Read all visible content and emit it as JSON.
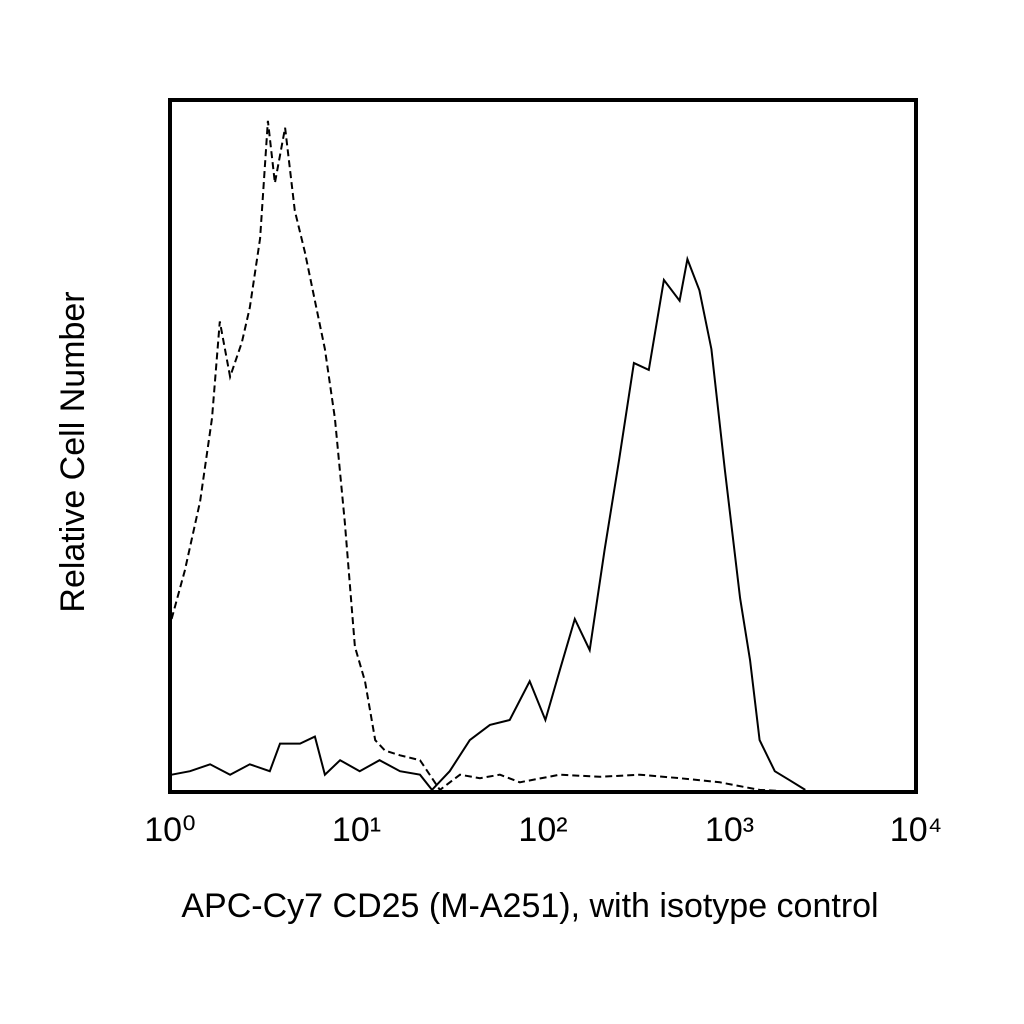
{
  "chart_data": {
    "type": "line",
    "xlabel": "APC-Cy7 CD25 (M-A251), with isotype control",
    "ylabel": "Relative Cell Number",
    "xscale": "log",
    "xlim": [
      1,
      10000
    ],
    "ylim": [
      0,
      100
    ],
    "xticks": [
      {
        "value": 1,
        "label": "10⁰"
      },
      {
        "value": 10,
        "label": "10¹"
      },
      {
        "value": 100,
        "label": "10²"
      },
      {
        "value": 1000,
        "label": "10³"
      },
      {
        "value": 10000,
        "label": "10⁴"
      }
    ],
    "series": [
      {
        "color": "#000000",
        "dash": true,
        "x": [
          1.02,
          1.2,
          1.45,
          1.68,
          1.85,
          2.1,
          2.43,
          2.68,
          3.04,
          3.35,
          3.65,
          4.14,
          4.67,
          5.29,
          5.98,
          6.77,
          7.66,
          8.66,
          9.8,
          11.1,
          12.6,
          14.2,
          17.1,
          21.9,
          28,
          35.9,
          45.9,
          58.7,
          75.1,
          123,
          202,
          331,
          541,
          887,
          1450,
          2400
        ],
        "values": [
          25,
          32,
          42,
          54,
          68,
          60,
          65,
          70,
          80,
          97,
          88,
          96,
          84,
          78,
          71,
          64,
          54,
          39,
          21,
          16,
          7.5,
          6,
          5.3,
          4.6,
          0.3,
          2.5,
          2,
          2.5,
          1.4,
          2.5,
          2.2,
          2.5,
          2,
          1.4,
          0.3,
          0
        ]
      },
      {
        "color": "#000000",
        "dash": false,
        "x": [
          1.02,
          1.28,
          1.64,
          2.1,
          2.68,
          3.43,
          3.89,
          4.98,
          5.98,
          6.77,
          8.17,
          10.4,
          13.3,
          17.1,
          21.9,
          25.4,
          31.6,
          40.5,
          51.9,
          66.3,
          84.9,
          103,
          123,
          148,
          178,
          214,
          256,
          307,
          369,
          445,
          540,
          595,
          690,
          800,
          945,
          1140,
          1290,
          1450,
          1750,
          2100,
          2550
        ],
        "values": [
          2.5,
          3,
          4,
          2.5,
          4,
          3,
          7,
          7,
          8,
          2.5,
          4.6,
          3,
          4.6,
          3,
          2.5,
          0.3,
          3,
          7.5,
          9.7,
          10.4,
          16,
          10.4,
          17.6,
          25,
          20.5,
          35,
          48,
          62,
          61,
          74,
          71,
          77,
          72.5,
          64,
          46.5,
          28,
          19,
          7.5,
          3,
          1.7,
          0.3
        ]
      }
    ]
  }
}
